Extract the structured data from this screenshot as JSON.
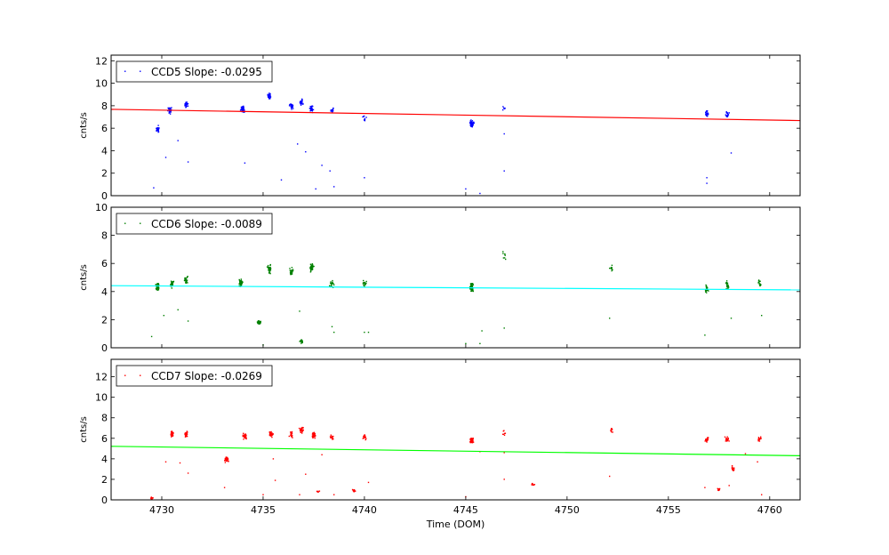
{
  "chart_data": [
    {
      "type": "scatter",
      "ylabel": "cnts/s",
      "ylim": [
        0,
        12.5
      ],
      "yticks": [
        0,
        2,
        4,
        6,
        8,
        10,
        12
      ],
      "xlim": [
        4727.5,
        4761.5
      ],
      "show_xticklabels": false,
      "legend": {
        "label": "CCD5 Slope: -0.0295",
        "placement": "top-left"
      },
      "point_color": "#0000ff",
      "fit_color": "#ff0000",
      "fit_line": {
        "x": [
          4727.5,
          4761.5
        ],
        "y": [
          7.68,
          6.68
        ]
      },
      "clusters": [
        {
          "x": 4729.8,
          "y": 5.9,
          "n": 40
        },
        {
          "x": 4730.4,
          "y": 7.6,
          "n": 30
        },
        {
          "x": 4731.2,
          "y": 8.1,
          "n": 30
        },
        {
          "x": 4734.0,
          "y": 7.7,
          "n": 45
        },
        {
          "x": 4735.3,
          "y": 8.9,
          "n": 35
        },
        {
          "x": 4736.4,
          "y": 8.0,
          "n": 30
        },
        {
          "x": 4736.9,
          "y": 8.3,
          "n": 30
        },
        {
          "x": 4737.4,
          "y": 7.7,
          "n": 30
        },
        {
          "x": 4738.4,
          "y": 7.6,
          "n": 15
        },
        {
          "x": 4740.0,
          "y": 6.9,
          "n": 12
        },
        {
          "x": 4745.3,
          "y": 6.4,
          "n": 60
        },
        {
          "x": 4746.9,
          "y": 7.8,
          "n": 6
        },
        {
          "x": 4756.9,
          "y": 7.3,
          "n": 18
        },
        {
          "x": 4757.9,
          "y": 7.2,
          "n": 22
        }
      ],
      "outliers": [
        [
          4729.6,
          0.7
        ],
        [
          4730.2,
          3.4
        ],
        [
          4730.8,
          4.9
        ],
        [
          4731.3,
          3.0
        ],
        [
          4734.1,
          2.9
        ],
        [
          4735.9,
          1.4
        ],
        [
          4736.7,
          4.6
        ],
        [
          4737.1,
          3.9
        ],
        [
          4737.6,
          0.6
        ],
        [
          4737.9,
          2.7
        ],
        [
          4738.3,
          2.2
        ],
        [
          4738.5,
          0.8
        ],
        [
          4740.0,
          1.6
        ],
        [
          4745.0,
          0.6
        ],
        [
          4745.7,
          0.2
        ],
        [
          4746.9,
          2.2
        ],
        [
          4746.9,
          5.5
        ],
        [
          4756.9,
          1.6
        ],
        [
          4756.9,
          1.1
        ],
        [
          4758.1,
          3.8
        ]
      ]
    },
    {
      "type": "scatter",
      "ylabel": "cnts/s",
      "ylim": [
        0,
        10
      ],
      "yticks": [
        0,
        2,
        4,
        6,
        8,
        10
      ],
      "xlim": [
        4727.5,
        4761.5
      ],
      "show_xticklabels": false,
      "legend": {
        "label": "CCD6 Slope: -0.0089",
        "placement": "top-left"
      },
      "point_color": "#008000",
      "fit_color": "#00ffff",
      "fit_line": {
        "x": [
          4727.5,
          4761.5
        ],
        "y": [
          4.42,
          4.12
        ]
      },
      "clusters": [
        {
          "x": 4729.8,
          "y": 4.3,
          "n": 45
        },
        {
          "x": 4730.5,
          "y": 4.5,
          "n": 35
        },
        {
          "x": 4731.2,
          "y": 4.8,
          "n": 30
        },
        {
          "x": 4733.9,
          "y": 4.6,
          "n": 55
        },
        {
          "x": 4734.8,
          "y": 1.8,
          "n": 55
        },
        {
          "x": 4735.3,
          "y": 5.6,
          "n": 35
        },
        {
          "x": 4736.4,
          "y": 5.4,
          "n": 35
        },
        {
          "x": 4736.9,
          "y": 0.45,
          "n": 25
        },
        {
          "x": 4737.4,
          "y": 5.7,
          "n": 45
        },
        {
          "x": 4738.4,
          "y": 4.5,
          "n": 18
        },
        {
          "x": 4740.0,
          "y": 4.6,
          "n": 18
        },
        {
          "x": 4745.3,
          "y": 4.3,
          "n": 60
        },
        {
          "x": 4746.9,
          "y": 6.5,
          "n": 8
        },
        {
          "x": 4752.2,
          "y": 5.7,
          "n": 10
        },
        {
          "x": 4756.9,
          "y": 4.2,
          "n": 18
        },
        {
          "x": 4757.9,
          "y": 4.4,
          "n": 22
        },
        {
          "x": 4759.5,
          "y": 4.6,
          "n": 15
        }
      ],
      "outliers": [
        [
          4729.5,
          0.8
        ],
        [
          4730.1,
          2.3
        ],
        [
          4730.8,
          2.7
        ],
        [
          4731.3,
          1.9
        ],
        [
          4735.0,
          0.2
        ],
        [
          4736.8,
          2.6
        ],
        [
          4738.4,
          1.5
        ],
        [
          4738.5,
          1.1
        ],
        [
          4740.0,
          1.1
        ],
        [
          4740.2,
          1.1
        ],
        [
          4745.0,
          0.3
        ],
        [
          4745.7,
          0.3
        ],
        [
          4745.8,
          1.2
        ],
        [
          4746.9,
          1.4
        ],
        [
          4752.1,
          2.1
        ],
        [
          4756.8,
          0.9
        ],
        [
          4758.1,
          2.1
        ],
        [
          4759.6,
          2.3
        ]
      ]
    },
    {
      "type": "scatter",
      "ylabel": "cnts/s",
      "xlabel": "Time (DOM)",
      "ylim": [
        0,
        13.7
      ],
      "yticks": [
        0,
        2,
        4,
        6,
        8,
        10,
        12
      ],
      "xlim": [
        4727.5,
        4761.5
      ],
      "xticks": [
        4730,
        4735,
        4740,
        4745,
        4750,
        4755,
        4760
      ],
      "legend": {
        "label": "CCD7 Slope: -0.0269",
        "placement": "top-left"
      },
      "point_color": "#ff0000",
      "fit_color": "#00ff00",
      "fit_line": {
        "x": [
          4727.5,
          4761.5
        ],
        "y": [
          5.22,
          4.3
        ]
      },
      "clusters": [
        {
          "x": 4729.5,
          "y": 0.15,
          "n": 10
        },
        {
          "x": 4730.5,
          "y": 6.4,
          "n": 30
        },
        {
          "x": 4731.2,
          "y": 6.4,
          "n": 30
        },
        {
          "x": 4733.2,
          "y": 3.9,
          "n": 30
        },
        {
          "x": 4734.1,
          "y": 6.2,
          "n": 45
        },
        {
          "x": 4735.4,
          "y": 6.4,
          "n": 40
        },
        {
          "x": 4736.4,
          "y": 6.4,
          "n": 30
        },
        {
          "x": 4736.9,
          "y": 6.8,
          "n": 25
        },
        {
          "x": 4737.5,
          "y": 6.3,
          "n": 35
        },
        {
          "x": 4737.7,
          "y": 0.8,
          "n": 8
        },
        {
          "x": 4738.4,
          "y": 6.1,
          "n": 15
        },
        {
          "x": 4739.5,
          "y": 0.9,
          "n": 18
        },
        {
          "x": 4740.0,
          "y": 6.1,
          "n": 15
        },
        {
          "x": 4745.3,
          "y": 5.8,
          "n": 55
        },
        {
          "x": 4746.9,
          "y": 6.5,
          "n": 8
        },
        {
          "x": 4748.3,
          "y": 1.5,
          "n": 10
        },
        {
          "x": 4752.2,
          "y": 6.7,
          "n": 10
        },
        {
          "x": 4756.9,
          "y": 5.8,
          "n": 18
        },
        {
          "x": 4757.5,
          "y": 1.0,
          "n": 12
        },
        {
          "x": 4757.9,
          "y": 5.8,
          "n": 22
        },
        {
          "x": 4758.2,
          "y": 3.0,
          "n": 15
        },
        {
          "x": 4759.5,
          "y": 5.9,
          "n": 15
        }
      ],
      "outliers": [
        [
          4730.2,
          3.7
        ],
        [
          4730.9,
          3.6
        ],
        [
          4731.3,
          2.6
        ],
        [
          4733.1,
          1.2
        ],
        [
          4735.0,
          0.5
        ],
        [
          4735.6,
          1.9
        ],
        [
          4735.5,
          4.0
        ],
        [
          4736.8,
          0.5
        ],
        [
          4737.1,
          2.5
        ],
        [
          4737.9,
          4.4
        ],
        [
          4738.5,
          0.5
        ],
        [
          4740.2,
          1.7
        ],
        [
          4745.0,
          0.3
        ],
        [
          4745.7,
          4.7
        ],
        [
          4746.9,
          2.0
        ],
        [
          4746.9,
          4.6
        ],
        [
          4752.1,
          2.3
        ],
        [
          4756.8,
          1.2
        ],
        [
          4758.0,
          1.4
        ],
        [
          4758.8,
          4.5
        ],
        [
          4759.4,
          3.7
        ],
        [
          4759.6,
          0.5
        ]
      ]
    }
  ]
}
